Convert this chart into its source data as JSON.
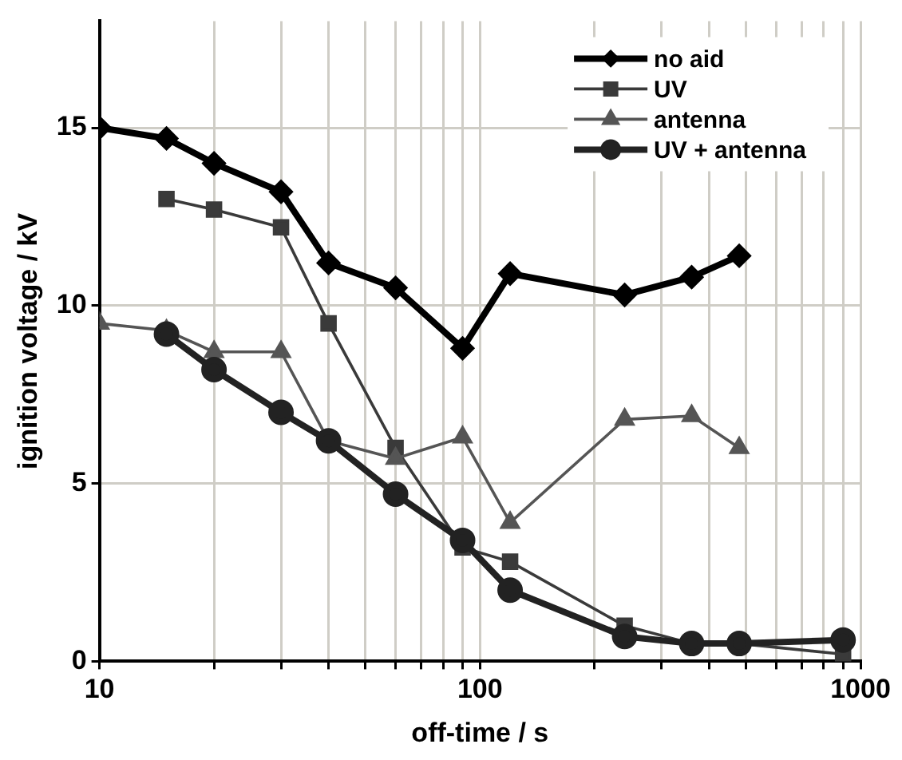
{
  "chart_data": {
    "type": "line",
    "xlabel": "off-time / s",
    "ylabel": "ignition voltage / kV",
    "log": "x",
    "grid": true,
    "legend": "top right",
    "line_style": "solid",
    "xlim": [
      10,
      1000
    ],
    "xticks": [
      10,
      {
        "value": 20,
        "label": null
      },
      {
        "value": 30,
        "label": null
      },
      {
        "value": 40,
        "label": null
      },
      {
        "value": 50,
        "label": null
      },
      {
        "value": 60,
        "label": null
      },
      {
        "value": 70,
        "label": null
      },
      {
        "value": 80,
        "label": null
      },
      {
        "value": 90,
        "label": null
      },
      100,
      {
        "value": 200,
        "label": null
      },
      {
        "value": 300,
        "label": null
      },
      {
        "value": 400,
        "label": null
      },
      {
        "value": 500,
        "label": null
      },
      {
        "value": 600,
        "label": null
      },
      {
        "value": 700,
        "label": null
      },
      {
        "value": 800,
        "label": null
      },
      {
        "value": 900,
        "label": null
      },
      1000
    ],
    "ylim": [
      0,
      18
    ],
    "yticks": [
      0,
      5,
      10,
      15
    ],
    "series": [
      {
        "name": "no aid",
        "color": "#000000",
        "marker": "diamond",
        "x": [
          10,
          15,
          20,
          30,
          40,
          60,
          90,
          120,
          240,
          360,
          480
        ],
        "values": [
          15,
          14.7,
          14,
          13.2,
          11.2,
          10.5,
          8.8,
          10.9,
          10.3,
          10.8,
          11.4
        ]
      },
      {
        "name": "UV",
        "color": "#3a3a3a",
        "marker": "square",
        "x": [
          15,
          20,
          30,
          40,
          60,
          90,
          120,
          240,
          360,
          480,
          900
        ],
        "values": [
          13,
          12.7,
          12.2,
          9.5,
          6,
          3.2,
          2.8,
          1.0,
          0.5,
          0.5,
          0.2
        ]
      },
      {
        "name": "antenna",
        "color": "#555555",
        "marker": "triangle",
        "x": [
          10,
          15,
          20,
          30,
          40,
          60,
          90,
          120,
          240,
          360,
          480
        ],
        "values": [
          9.5,
          9.3,
          8.7,
          8.7,
          6.2,
          5.7,
          6.3,
          3.9,
          6.8,
          6.9,
          6.0
        ]
      },
      {
        "name": "UV + antenna",
        "color": "#222222",
        "marker": "circle",
        "x": [
          15,
          20,
          30,
          40,
          60,
          90,
          120,
          240,
          360,
          480,
          900
        ],
        "values": [
          9.2,
          8.2,
          7.0,
          6.2,
          4.7,
          3.4,
          2.0,
          0.7,
          0.5,
          0.5,
          0.6
        ]
      }
    ]
  }
}
